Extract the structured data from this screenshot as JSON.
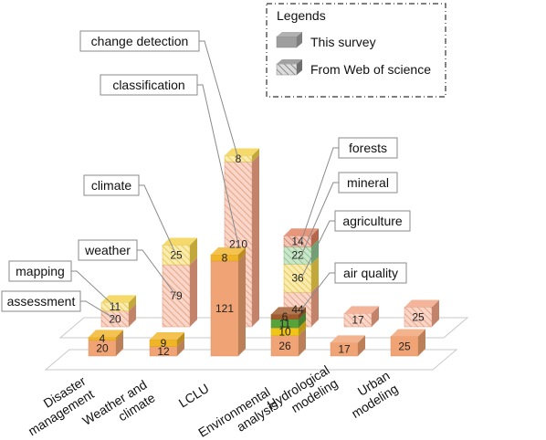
{
  "chart_data": {
    "type": "bar",
    "stacked": true,
    "view": "3d",
    "grid": true,
    "legend_position": "top-right",
    "categories": [
      "Disaster management",
      "Weather and climate",
      "LCLU",
      "Environmental analysis",
      "Hydrological modeling",
      "Urban modeling"
    ],
    "category_labels": [
      [
        "Disaster",
        "management"
      ],
      [
        "Weather and",
        "climate"
      ],
      [
        "LCLU"
      ],
      [
        "Environmental",
        "analysis"
      ],
      [
        "Hydrological",
        "modeling"
      ],
      [
        "Urban",
        "modeling"
      ]
    ],
    "legend": {
      "title": "Legends",
      "items": [
        {
          "label": "This survey",
          "style": "solid",
          "color": "#9e9e9e"
        },
        {
          "label": "From Web of science",
          "style": "hatched",
          "color": "#8a8a8a"
        }
      ]
    },
    "survey_stacks": [
      [
        {
          "value": 20,
          "label": "20",
          "color": "#f0a374"
        },
        {
          "value": 4,
          "label": "4",
          "color": "#f0b429"
        }
      ],
      [
        {
          "value": 12,
          "label": "12",
          "color": "#f0a374"
        },
        {
          "value": 9,
          "label": "9",
          "color": "#f0b429"
        }
      ],
      [
        {
          "value": 121,
          "label": "121",
          "color": "#f0a374"
        },
        {
          "value": 8,
          "label": "8",
          "color": "#f0b429"
        }
      ],
      [
        {
          "value": 26,
          "label": "26",
          "color": "#f0a374"
        },
        {
          "value": 10,
          "label": "10",
          "color": "#f0c419"
        },
        {
          "value": 11,
          "label": "11",
          "color": "#58a23c"
        },
        {
          "value": 6,
          "label": "6",
          "color": "#a05a2c"
        }
      ],
      [
        {
          "value": 17,
          "label": "17",
          "color": "#f0a374"
        }
      ],
      [
        {
          "value": 25,
          "label": "25",
          "color": "#f0a374"
        }
      ]
    ],
    "wos_stacks": [
      [
        {
          "value": 20,
          "label": "20",
          "color": "#f2a484"
        },
        {
          "value": 11,
          "label": "11",
          "color": "#f3d24a"
        }
      ],
      [
        {
          "value": 79,
          "label": "79",
          "color": "#f2a484"
        },
        {
          "value": 25,
          "label": "25",
          "color": "#f3d24a"
        }
      ],
      [
        {
          "value": 210,
          "label": "210",
          "color": "#f2a484"
        },
        {
          "value": 8,
          "label": "8",
          "color": "#f3d24a"
        }
      ],
      [
        {
          "value": 44,
          "label": "44",
          "color": "#f2a484"
        },
        {
          "value": 36,
          "label": "36",
          "color": "#f3d24a"
        },
        {
          "value": 22,
          "label": "22",
          "color": "#8cc98c"
        },
        {
          "value": 14,
          "label": "14",
          "color": "#e07f5e"
        }
      ],
      [
        {
          "value": 17,
          "label": "17",
          "color": "#f2a484"
        }
      ],
      [
        {
          "value": 25,
          "label": "25",
          "color": "#f2a484"
        }
      ]
    ],
    "annotations": [
      {
        "text": "change detection",
        "stack": "wos",
        "bar": 2,
        "segment": 1
      },
      {
        "text": "classification",
        "stack": "wos",
        "bar": 2,
        "segment": 0
      },
      {
        "text": "climate",
        "stack": "wos",
        "bar": 1,
        "segment": 1
      },
      {
        "text": "weather",
        "stack": "wos",
        "bar": 1,
        "segment": 0
      },
      {
        "text": "mapping",
        "stack": "wos",
        "bar": 0,
        "segment": 1
      },
      {
        "text": "assessment",
        "stack": "wos",
        "bar": 0,
        "segment": 0
      },
      {
        "text": "forests",
        "stack": "wos",
        "bar": 3,
        "segment": 3
      },
      {
        "text": "mineral",
        "stack": "wos",
        "bar": 3,
        "segment": 2
      },
      {
        "text": "agriculture",
        "stack": "wos",
        "bar": 3,
        "segment": 1
      },
      {
        "text": "air quality",
        "stack": "wos",
        "bar": 3,
        "segment": 0
      }
    ]
  }
}
